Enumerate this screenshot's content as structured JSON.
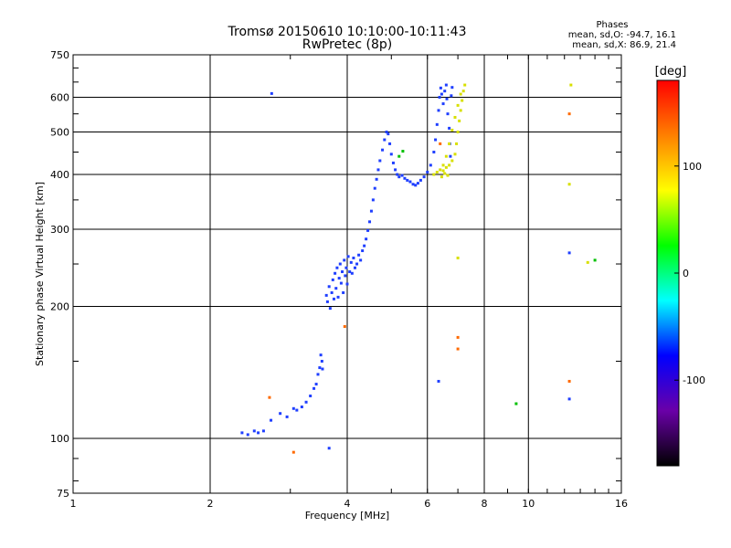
{
  "header": {
    "title_line1": "Tromsø 20150610 10:10:00-10:11:43",
    "title_line2": "RwPretec (8p)"
  },
  "phase_stats": {
    "label": "Phases",
    "line_o": "mean, sd,O:  -94.7, 16.1",
    "line_x": "mean, sd,X:   86.9, 21.4"
  },
  "chart_data": {
    "type": "scatter",
    "xlabel": "Frequency [MHz]",
    "ylabel": "Stationary phase Virtual Height [km]",
    "xscale": "log",
    "yscale": "log",
    "xlim": [
      1,
      16
    ],
    "ylim": [
      75,
      750
    ],
    "xticks": [
      1,
      2,
      4,
      6,
      8,
      10,
      16
    ],
    "yticks": [
      75,
      100,
      200,
      300,
      400,
      500,
      600,
      750
    ],
    "grid": true,
    "colorbar": {
      "label": "[deg]",
      "range": [
        -180,
        180
      ],
      "ticks": [
        100,
        0,
        -100
      ],
      "colors": [
        "#000000",
        "#6a00a8",
        "#0000ff",
        "#00ffff",
        "#00ff00",
        "#ffff00",
        "#ff8000",
        "#ff0000"
      ]
    },
    "series": [
      {
        "mode": "O",
        "color": "#1f3fff",
        "points": [
          [
            2.35,
            103
          ],
          [
            2.42,
            102
          ],
          [
            2.5,
            104
          ],
          [
            2.55,
            103
          ],
          [
            2.62,
            104
          ],
          [
            2.72,
            110
          ],
          [
            2.85,
            114
          ],
          [
            2.95,
            112
          ],
          [
            3.05,
            117
          ],
          [
            3.1,
            116
          ],
          [
            3.18,
            118
          ],
          [
            3.25,
            121
          ],
          [
            3.32,
            125
          ],
          [
            3.38,
            130
          ],
          [
            3.42,
            133
          ],
          [
            3.45,
            140
          ],
          [
            3.48,
            145
          ],
          [
            3.5,
            155
          ],
          [
            3.52,
            150
          ],
          [
            3.53,
            144
          ],
          [
            3.6,
            212
          ],
          [
            3.62,
            205
          ],
          [
            3.65,
            222
          ],
          [
            3.67,
            198
          ],
          [
            3.7,
            215
          ],
          [
            3.72,
            230
          ],
          [
            3.74,
            208
          ],
          [
            3.76,
            238
          ],
          [
            3.78,
            220
          ],
          [
            3.8,
            245
          ],
          [
            3.82,
            210
          ],
          [
            3.84,
            232
          ],
          [
            3.86,
            250
          ],
          [
            3.88,
            226
          ],
          [
            3.9,
            240
          ],
          [
            3.92,
            215
          ],
          [
            3.94,
            255
          ],
          [
            3.96,
            235
          ],
          [
            3.98,
            245
          ],
          [
            4.0,
            225
          ],
          [
            4.02,
            260
          ],
          [
            4.05,
            240
          ],
          [
            4.08,
            252
          ],
          [
            4.1,
            238
          ],
          [
            4.13,
            258
          ],
          [
            4.16,
            245
          ],
          [
            4.2,
            250
          ],
          [
            4.24,
            262
          ],
          [
            4.28,
            255
          ],
          [
            4.32,
            268
          ],
          [
            4.36,
            275
          ],
          [
            4.4,
            285
          ],
          [
            4.44,
            298
          ],
          [
            4.48,
            312
          ],
          [
            4.52,
            330
          ],
          [
            4.56,
            350
          ],
          [
            4.6,
            372
          ],
          [
            4.64,
            390
          ],
          [
            4.68,
            410
          ],
          [
            4.72,
            430
          ],
          [
            4.78,
            455
          ],
          [
            4.83,
            480
          ],
          [
            4.88,
            500
          ],
          [
            4.92,
            495
          ],
          [
            4.96,
            470
          ],
          [
            5.0,
            445
          ],
          [
            5.05,
            425
          ],
          [
            5.1,
            410
          ],
          [
            5.15,
            400
          ],
          [
            5.2,
            395
          ],
          [
            5.28,
            398
          ],
          [
            5.35,
            392
          ],
          [
            5.42,
            388
          ],
          [
            5.5,
            385
          ],
          [
            5.58,
            380
          ],
          [
            5.65,
            378
          ],
          [
            5.72,
            382
          ],
          [
            5.8,
            388
          ],
          [
            5.9,
            395
          ],
          [
            6.0,
            405
          ],
          [
            6.1,
            420
          ],
          [
            6.2,
            450
          ],
          [
            6.25,
            480
          ],
          [
            6.3,
            520
          ],
          [
            6.35,
            560
          ],
          [
            6.38,
            600
          ],
          [
            6.42,
            630
          ],
          [
            6.45,
            610
          ],
          [
            6.5,
            580
          ],
          [
            6.55,
            620
          ],
          [
            6.6,
            640
          ],
          [
            6.62,
            595
          ],
          [
            6.65,
            550
          ],
          [
            6.7,
            510
          ],
          [
            6.72,
            470
          ],
          [
            6.74,
            440
          ],
          [
            6.77,
            605
          ],
          [
            6.8,
            632
          ],
          [
            2.73,
            612
          ],
          [
            3.65,
            95
          ],
          [
            6.35,
            135
          ],
          [
            12.3,
            123
          ],
          [
            12.3,
            265
          ]
        ]
      },
      {
        "mode": "X",
        "color": "#d8e000",
        "points": [
          [
            6.2,
            400
          ],
          [
            6.3,
            405
          ],
          [
            6.4,
            410
          ],
          [
            6.5,
            408
          ],
          [
            6.6,
            415
          ],
          [
            6.7,
            420
          ],
          [
            6.8,
            430
          ],
          [
            6.9,
            445
          ],
          [
            6.95,
            470
          ],
          [
            7.0,
            500
          ],
          [
            7.05,
            530
          ],
          [
            7.1,
            560
          ],
          [
            7.15,
            590
          ],
          [
            7.2,
            620
          ],
          [
            7.25,
            640
          ],
          [
            7.1,
            610
          ],
          [
            7.0,
            575
          ],
          [
            6.9,
            540
          ],
          [
            6.8,
            505
          ],
          [
            6.7,
            470
          ],
          [
            6.6,
            440
          ],
          [
            6.5,
            420
          ],
          [
            6.45,
            395
          ],
          [
            6.55,
            402
          ],
          [
            6.65,
            398
          ],
          [
            7.0,
            258
          ],
          [
            12.3,
            380
          ],
          [
            12.4,
            640
          ],
          [
            13.5,
            252
          ]
        ]
      },
      {
        "mode": "other",
        "color": "#ff6a00",
        "points": [
          [
            2.7,
            124
          ],
          [
            3.05,
            93
          ],
          [
            3.95,
            180
          ],
          [
            7.0,
            170
          ],
          [
            7.0,
            160
          ],
          [
            6.4,
            470
          ],
          [
            12.3,
            550
          ],
          [
            12.3,
            135
          ]
        ]
      },
      {
        "mode": "green",
        "color": "#00c000",
        "points": [
          [
            9.4,
            120
          ],
          [
            14.0,
            255
          ],
          [
            5.2,
            440
          ],
          [
            5.3,
            452
          ]
        ]
      }
    ]
  }
}
